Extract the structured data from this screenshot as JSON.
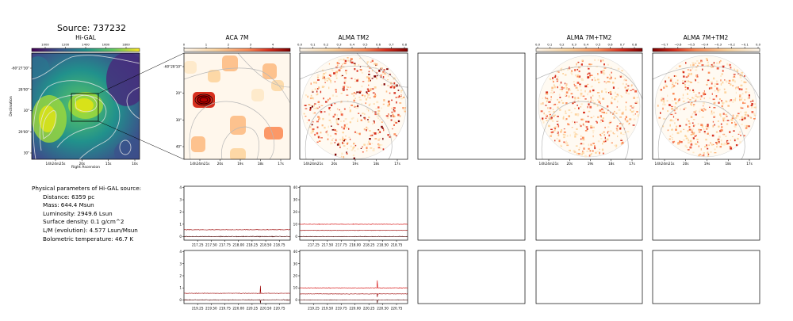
{
  "title": "Source: 737232",
  "panels": {
    "higal": {
      "title": "Hi-GAL",
      "xlabel": "Right Ascension",
      "ylabel": "Declination",
      "colorbar_ticks": [
        "1000",
        "1200",
        "1400",
        "1600",
        "1800"
      ],
      "xticks": [
        "14h24m25s",
        "20s",
        "15s",
        "10s"
      ],
      "yticks": [
        "-60°27'30\"",
        "28'00\"",
        "30\"",
        "29'00\"",
        "30\""
      ]
    },
    "aca": {
      "title": "ACA 7M",
      "colorbar_ticks": [
        "0",
        "1",
        "2",
        "3",
        "4"
      ],
      "xticks": [
        "14h24m21s",
        "20s",
        "19s",
        "18s",
        "17s"
      ],
      "yticks": [
        "-60°28'10\"",
        "20\"",
        "30\"",
        "40\""
      ]
    },
    "tm2": {
      "title": "ALMA TM2",
      "colorbar_ticks": [
        "0.0",
        "0.1",
        "0.2",
        "0.3",
        "0.4",
        "0.5",
        "0.6",
        "0.7",
        "0.8"
      ],
      "xticks": [
        "14h24m21s",
        "20s",
        "19s",
        "18s",
        "17s"
      ]
    },
    "combo": {
      "title": "ALMA 7M+TM2",
      "colorbar_ticks": [
        "0.0",
        "0.1",
        "0.2",
        "0.3",
        "0.4",
        "0.5",
        "0.6",
        "0.7",
        "0.8"
      ],
      "xticks": [
        "14h24m21s",
        "20s",
        "19s",
        "18s",
        "17s"
      ]
    },
    "combo_neg": {
      "title": "ALMA 7M+TM2",
      "colorbar_ticks": [
        "−0.7",
        "−0.6",
        "−0.5",
        "−0.4",
        "−0.3",
        "−0.2",
        "−0.1",
        "0.0"
      ],
      "xticks": [
        "14h24m21s",
        "20s",
        "19s",
        "18s",
        "17s"
      ]
    }
  },
  "info": {
    "header": "Physical parameters of Hi-GAL source:",
    "lines": [
      "Distance: 6359 pc",
      "Mass: 644.4 Msun",
      "Luminosity: 2949.6 Lsun",
      "Surface density: 0.1 g/cm^2",
      "L/M (evolution): 4.577 Lsun/Msun",
      "Bolometric temperature: 46.7 K"
    ]
  },
  "chart_data": [
    {
      "type": "line",
      "name": "spectrum-aca-row1",
      "x_range": [
        217.0,
        218.95
      ],
      "xticks": [
        "217.25",
        "217.50",
        "217.75",
        "218.00",
        "218.25",
        "218.50",
        "218.75"
      ],
      "yticks": [
        "0",
        "1",
        "2",
        "3",
        "4"
      ],
      "ylim": [
        -0.3,
        4.1
      ],
      "series": [
        {
          "level": 0.55,
          "noise": 0.04
        },
        {
          "level": 0.0,
          "noise": 0.05
        }
      ]
    },
    {
      "type": "line",
      "name": "spectrum-tm2-row1",
      "x_range": [
        217.0,
        218.95
      ],
      "xticks": [
        "217.25",
        "217.50",
        "217.75",
        "218.00",
        "218.25",
        "218.50",
        "218.75"
      ],
      "yticks": [
        "0",
        "10",
        "20",
        "30",
        "40"
      ],
      "ylim": [
        -3,
        41
      ],
      "series": [
        {
          "level": 10.0,
          "noise": 0.35
        },
        {
          "level": 5.0,
          "noise": 0.35
        },
        {
          "level": 0.0,
          "noise": 0.35
        }
      ]
    },
    {
      "type": "line",
      "name": "spectrum-aca-row2",
      "x_range": [
        219.0,
        220.95
      ],
      "xticks": [
        "219.25",
        "219.50",
        "219.75",
        "220.00",
        "220.25",
        "220.50",
        "220.75"
      ],
      "yticks": [
        "0",
        "1",
        "2",
        "3",
        "4"
      ],
      "ylim": [
        -0.3,
        4.1
      ],
      "spike_x": 220.4,
      "series": [
        {
          "level": 0.55,
          "noise": 0.04
        },
        {
          "level": 0.0,
          "noise": 0.05
        }
      ]
    },
    {
      "type": "line",
      "name": "spectrum-tm2-row2",
      "x_range": [
        219.0,
        220.95
      ],
      "xticks": [
        "219.25",
        "219.50",
        "219.75",
        "220.00",
        "220.25",
        "220.50",
        "220.75"
      ],
      "yticks": [
        "0",
        "10",
        "20",
        "30",
        "40"
      ],
      "ylim": [
        -3,
        41
      ],
      "spike_x": 220.4,
      "series": [
        {
          "level": 10.0,
          "noise": 0.35
        },
        {
          "level": 5.0,
          "noise": 0.35
        },
        {
          "level": 0.0,
          "noise": 0.35
        }
      ]
    }
  ],
  "colors": {
    "spectrum_dark": "#4a0000",
    "spectrum_mid": "#9a0000",
    "spectrum_red": "#d40000",
    "contour_gray": "#b8b8b8"
  }
}
